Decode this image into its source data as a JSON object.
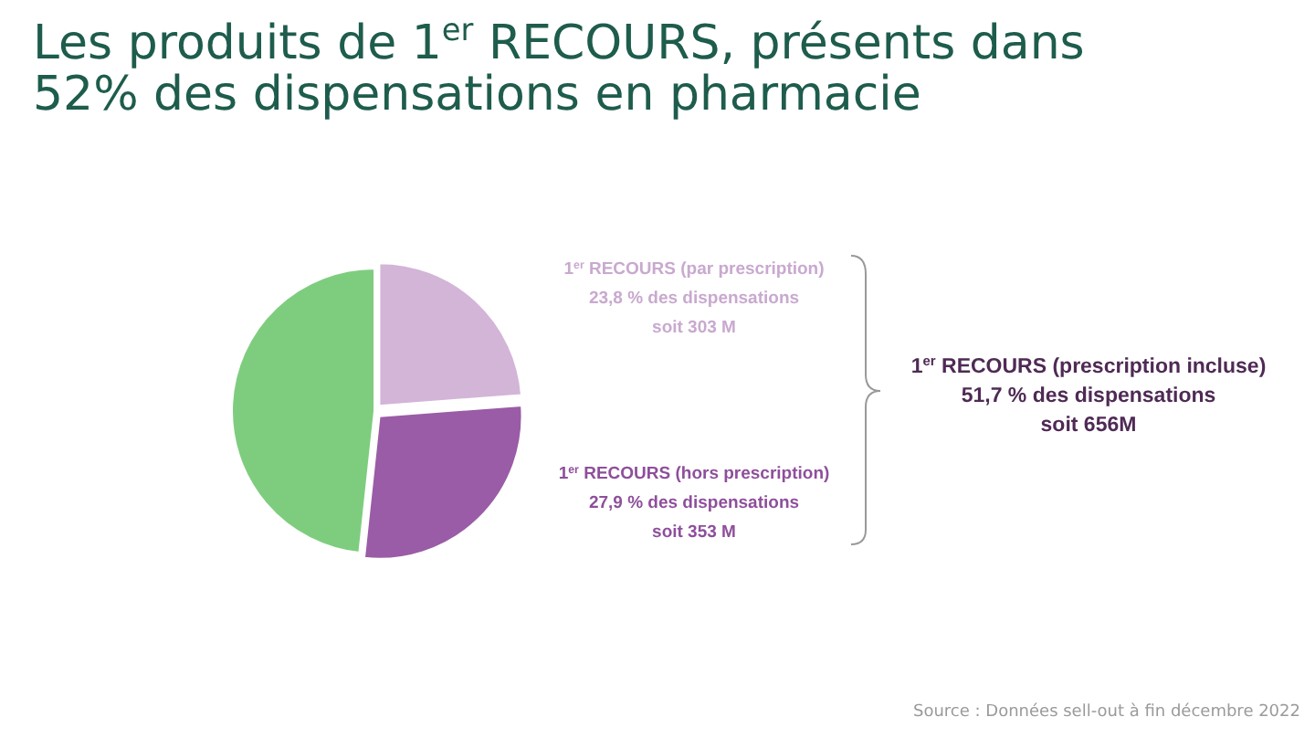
{
  "chart_data": {
    "type": "pie",
    "title": "Les produits de 1$^{er}$ RECOURS, présents dans\n52% des dispensations en pharmacie",
    "categories": [
      null,
      null,
      null
    ],
    "values": [
      23.8,
      27.9,
      48.3
    ],
    "colors": [
      "#d3b5d8",
      "#9a5ca6",
      "#7ecd7e"
    ],
    "annotations": [
      "1$^{er}$ RECOURS (par prescription)\n23,8 % des dispensations\nsoit 303 M",
      "1$^{er}$ RECOURS (hors prescription)\n27,9 % des dispensations\nsoit 353 M",
      "1$^{er}$ RECOURS (prescription incluse)\n51,7 % des dispensations\nsoit 656M",
      "Source : Données sell-out à fin décembre 2022"
    ]
  }
}
